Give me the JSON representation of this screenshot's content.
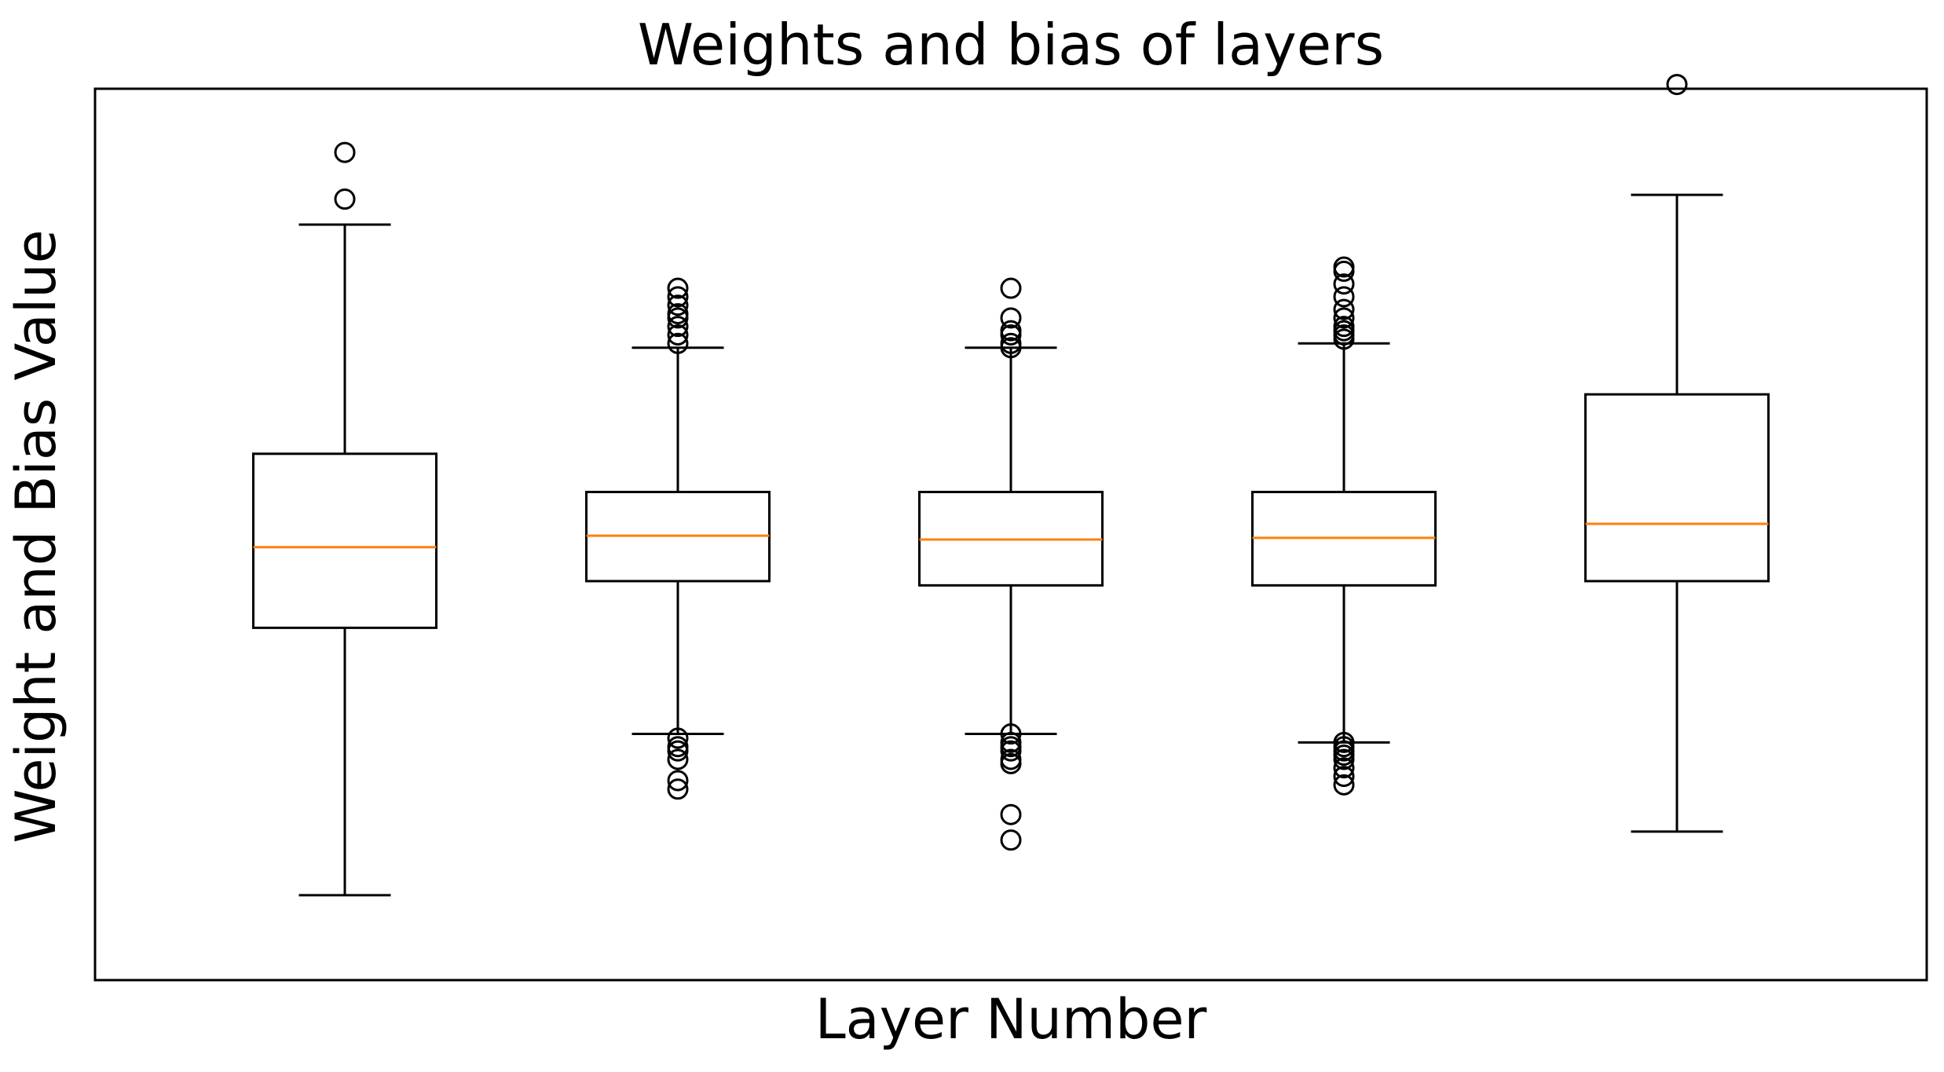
{
  "chart_data": {
    "type": "box",
    "title": "Weights and bias of layers",
    "xlabel": "Layer Number",
    "ylabel": "Weight and Bias Value",
    "x_ticks_visible": false,
    "y_ticks_visible": false,
    "ylim": [
      -1.05,
      1.05
    ],
    "colors": {
      "box": "#000000",
      "median": "#ff7f0e",
      "flier": "#000000"
    },
    "boxes": [
      {
        "whisker_low": -0.85,
        "q1": -0.22,
        "median": -0.03,
        "q3": 0.19,
        "whisker_high": 0.73,
        "fliers": [
          0.79,
          0.9
        ]
      },
      {
        "whisker_low": -0.47,
        "q1": -0.11,
        "median": -0.003,
        "q3": 0.1,
        "whisker_high": 0.44,
        "fliers": [
          0.45,
          0.47,
          0.49,
          0.51,
          0.52,
          0.54,
          0.56,
          0.58,
          -0.48,
          -0.5,
          -0.51,
          -0.53,
          -0.58,
          -0.6
        ]
      },
      {
        "whisker_low": -0.47,
        "q1": -0.12,
        "median": -0.012,
        "q3": 0.1,
        "whisker_high": 0.44,
        "fliers": [
          0.44,
          0.45,
          0.47,
          0.48,
          0.51,
          0.58,
          -0.47,
          -0.49,
          -0.5,
          -0.51,
          -0.53,
          -0.54,
          -0.66,
          -0.72
        ]
      },
      {
        "whisker_low": -0.49,
        "q1": -0.12,
        "median": -0.008,
        "q3": 0.1,
        "whisker_high": 0.45,
        "fliers": [
          0.46,
          0.47,
          0.48,
          0.49,
          0.51,
          0.53,
          0.56,
          0.59,
          0.62,
          0.63,
          -0.49,
          -0.5,
          -0.51,
          -0.52,
          -0.53,
          -0.55,
          -0.57,
          -0.59
        ]
      },
      {
        "whisker_low": -0.7,
        "q1": -0.11,
        "median": 0.025,
        "q3": 0.33,
        "whisker_high": 0.8,
        "fliers": [
          1.06
        ]
      }
    ]
  }
}
